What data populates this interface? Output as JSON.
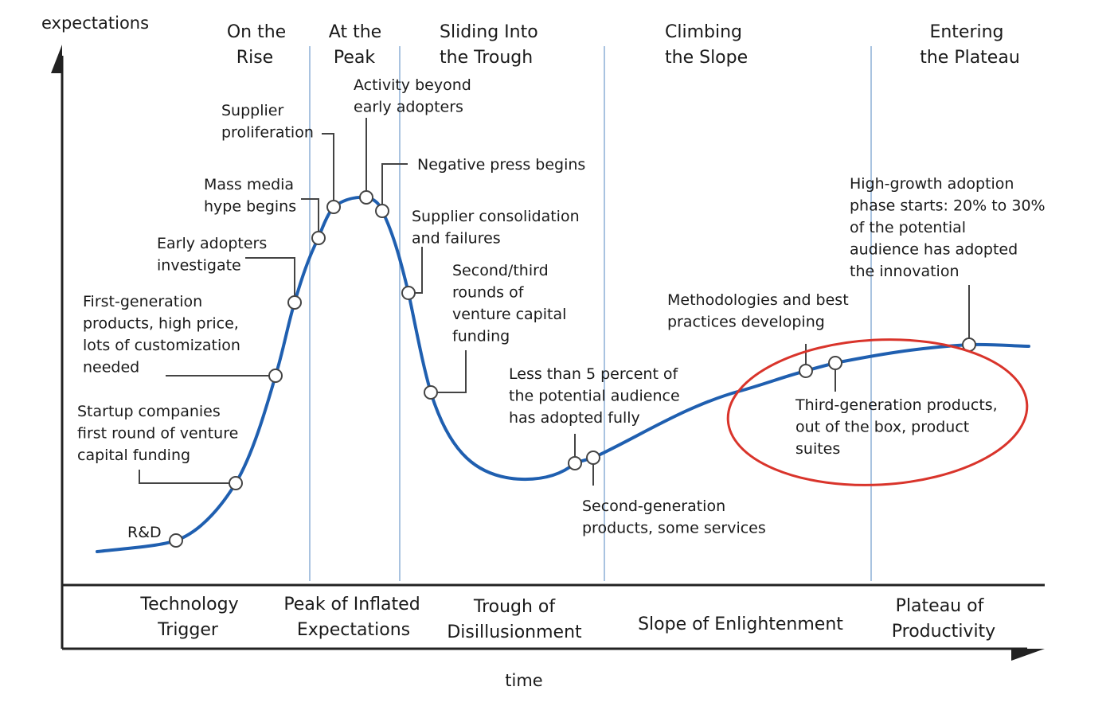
{
  "axes": {
    "y_label": "expectations",
    "x_label": "time"
  },
  "stage_headers": [
    {
      "id": "rise",
      "lines": [
        "On the",
        "Rise"
      ]
    },
    {
      "id": "peak",
      "lines": [
        "At the",
        "Peak"
      ]
    },
    {
      "id": "trough",
      "lines": [
        "Sliding Into",
        "the Trough"
      ]
    },
    {
      "id": "slope",
      "lines": [
        "Climbing",
        "the Slope"
      ]
    },
    {
      "id": "plateau",
      "lines": [
        "Entering",
        "the Plateau"
      ]
    }
  ],
  "phases": [
    {
      "id": "technology-trigger",
      "lines": [
        "Technology",
        "Trigger"
      ]
    },
    {
      "id": "peak-of-inflated",
      "lines": [
        "Peak of Inflated",
        "Expectations"
      ]
    },
    {
      "id": "trough-of-disillusionment",
      "lines": [
        "Trough of",
        "Disillusionment"
      ]
    },
    {
      "id": "slope-of-enlightenment",
      "lines": [
        "Slope of Enlightenment"
      ]
    },
    {
      "id": "plateau-of-productivity",
      "lines": [
        "Plateau of",
        "Productivity"
      ]
    }
  ],
  "annotations": [
    {
      "id": "rnd",
      "lines": [
        "R&D"
      ]
    },
    {
      "id": "startup",
      "lines": [
        "Startup companies",
        "first round of venture",
        "capital funding"
      ]
    },
    {
      "id": "first-gen",
      "lines": [
        "First-generation",
        "products, high price,",
        "lots of customization",
        "needed"
      ]
    },
    {
      "id": "early-adopters",
      "lines": [
        "Early adopters",
        "investigate"
      ]
    },
    {
      "id": "mass-media",
      "lines": [
        "Mass media",
        "hype begins"
      ]
    },
    {
      "id": "supplier-prolif",
      "lines": [
        "Supplier",
        "proliferation"
      ]
    },
    {
      "id": "activity-beyond",
      "lines": [
        "Activity beyond",
        "early adopters"
      ]
    },
    {
      "id": "negative-press",
      "lines": [
        "Negative press begins"
      ]
    },
    {
      "id": "supplier-consol",
      "lines": [
        "Supplier consolidation",
        "and failures"
      ]
    },
    {
      "id": "second-third-rounds",
      "lines": [
        "Second/third",
        "rounds of",
        "venture capital",
        "funding"
      ]
    },
    {
      "id": "less-than-5",
      "lines": [
        "Less than 5 percent of",
        "the potential audience",
        "has adopted fully"
      ]
    },
    {
      "id": "second-gen",
      "lines": [
        "Second-generation",
        "products, some services"
      ]
    },
    {
      "id": "methodologies",
      "lines": [
        "Methodologies and best",
        "practices developing"
      ]
    },
    {
      "id": "third-gen",
      "lines": [
        "Third-generation products,",
        "out of the box, product",
        "suites"
      ]
    },
    {
      "id": "high-growth",
      "lines": [
        "High-growth adoption",
        "phase starts: 20% to 30%",
        "of the potential",
        "audience has adopted",
        "the innovation"
      ]
    }
  ],
  "colors": {
    "curve": "#1f5fb0",
    "highlight": "#d9342b",
    "divider": "#a9c3e0",
    "axis": "#222222"
  }
}
